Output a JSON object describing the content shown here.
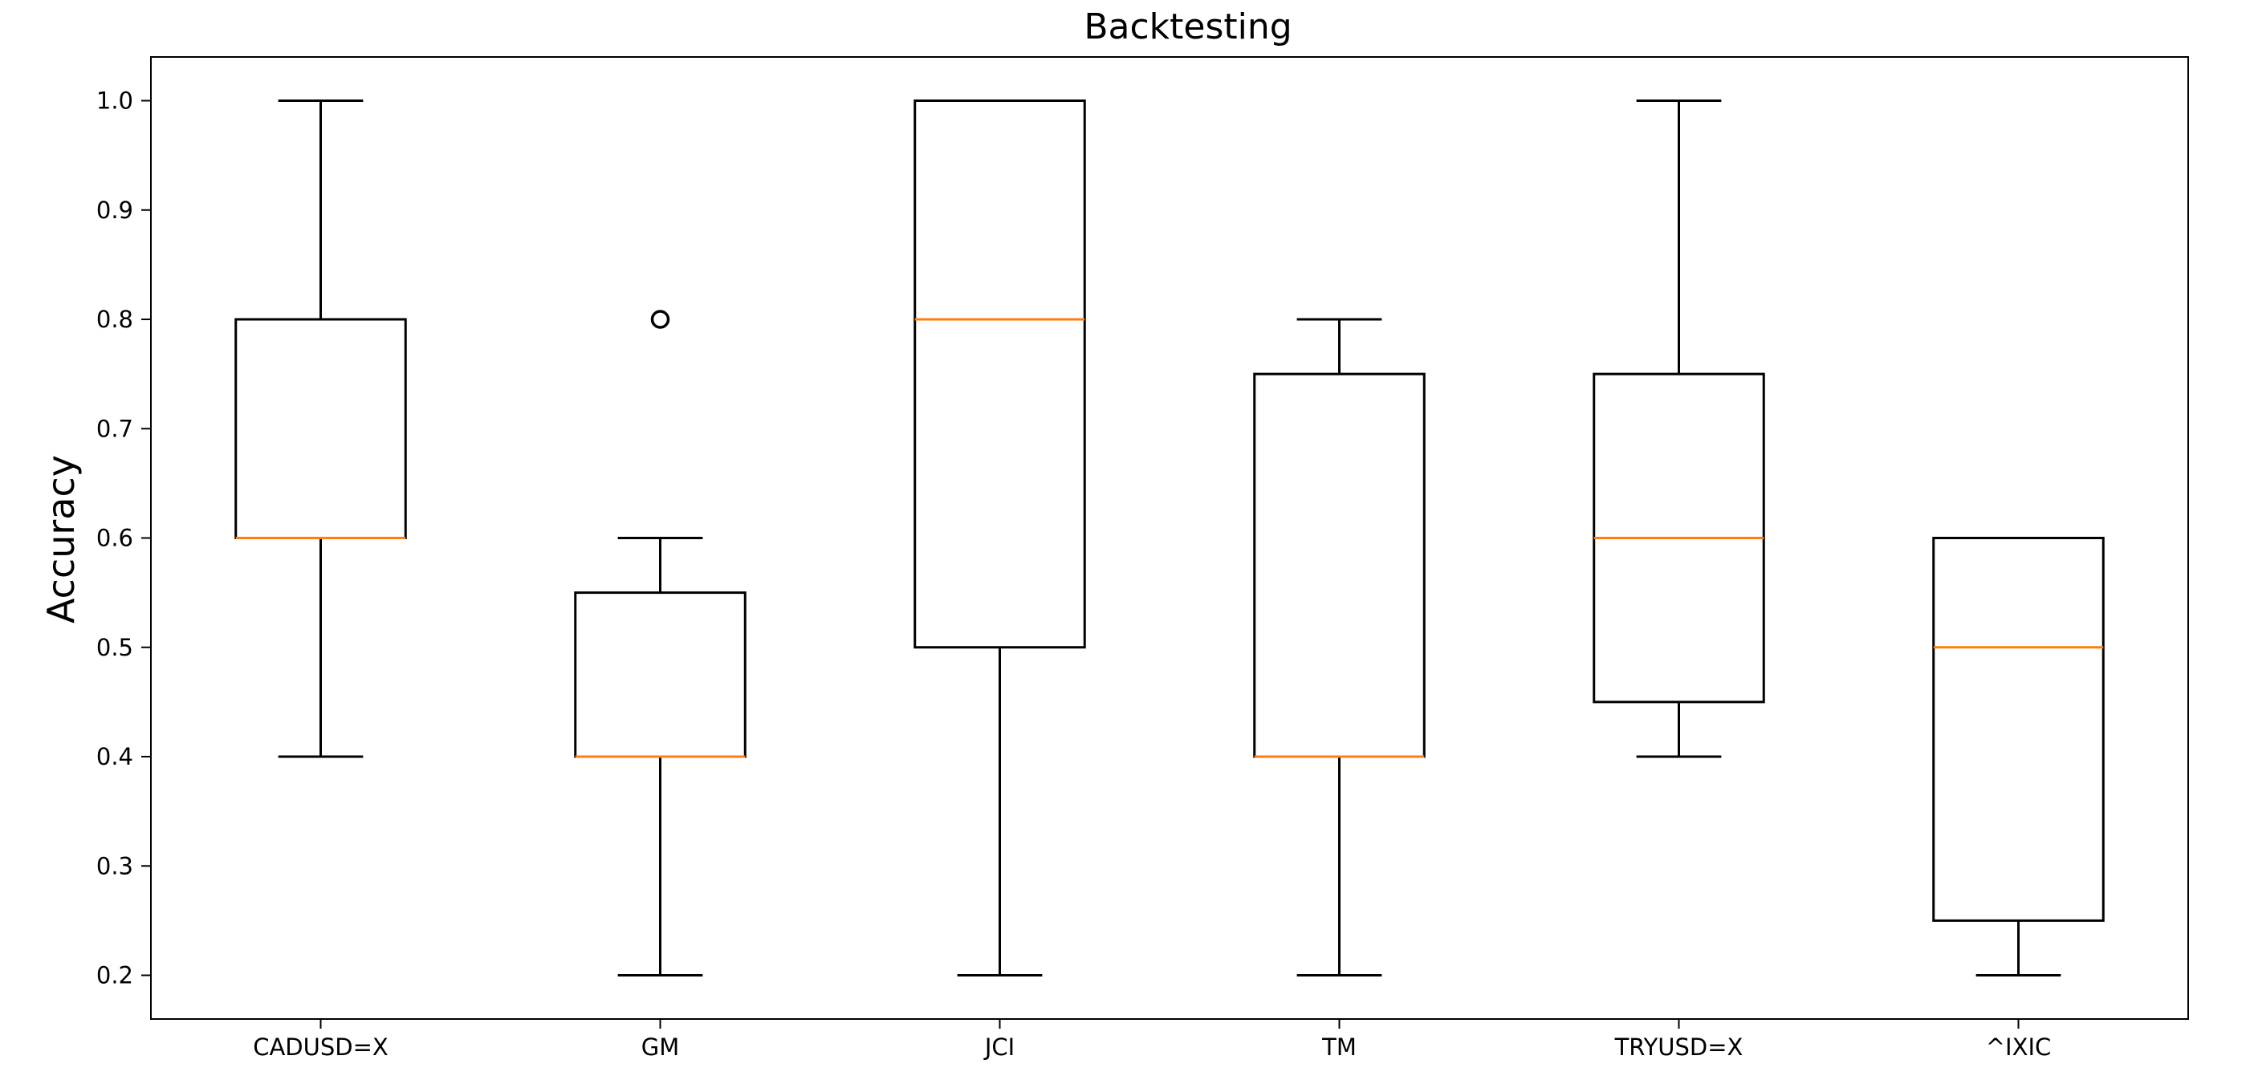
{
  "chart_data": {
    "type": "box",
    "title": "Backtesting",
    "xlabel": "",
    "ylabel": "Accuracy",
    "ylim": [
      0.16,
      1.04
    ],
    "yticks": [
      "0.2",
      "0.3",
      "0.4",
      "0.5",
      "0.6",
      "0.7",
      "0.8",
      "0.9",
      "1.0"
    ],
    "grid": false,
    "median_color": "#ff7f0e",
    "box_color": "#000000",
    "categories": [
      "CADUSD=X",
      "GM",
      "JCI",
      "TM",
      "TRYUSD=X",
      "^IXIC"
    ],
    "boxes": [
      {
        "label": "CADUSD=X",
        "whisker_low": 0.4,
        "q1": 0.6,
        "median": 0.6,
        "q3": 0.8,
        "whisker_high": 1.0,
        "outliers": []
      },
      {
        "label": "GM",
        "whisker_low": 0.2,
        "q1": 0.4,
        "median": 0.4,
        "q3": 0.55,
        "whisker_high": 0.6,
        "outliers": [
          0.8
        ]
      },
      {
        "label": "JCI",
        "whisker_low": 0.2,
        "q1": 0.5,
        "median": 0.8,
        "q3": 1.0,
        "whisker_high": 1.0,
        "outliers": []
      },
      {
        "label": "TM",
        "whisker_low": 0.2,
        "q1": 0.4,
        "median": 0.4,
        "q3": 0.75,
        "whisker_high": 0.8,
        "outliers": []
      },
      {
        "label": "TRYUSD=X",
        "whisker_low": 0.4,
        "q1": 0.45,
        "median": 0.6,
        "q3": 0.75,
        "whisker_high": 1.0,
        "outliers": []
      },
      {
        "label": "^IXIC",
        "whisker_low": 0.2,
        "q1": 0.25,
        "median": 0.5,
        "q3": 0.6,
        "whisker_high": 0.6,
        "outliers": []
      }
    ]
  }
}
